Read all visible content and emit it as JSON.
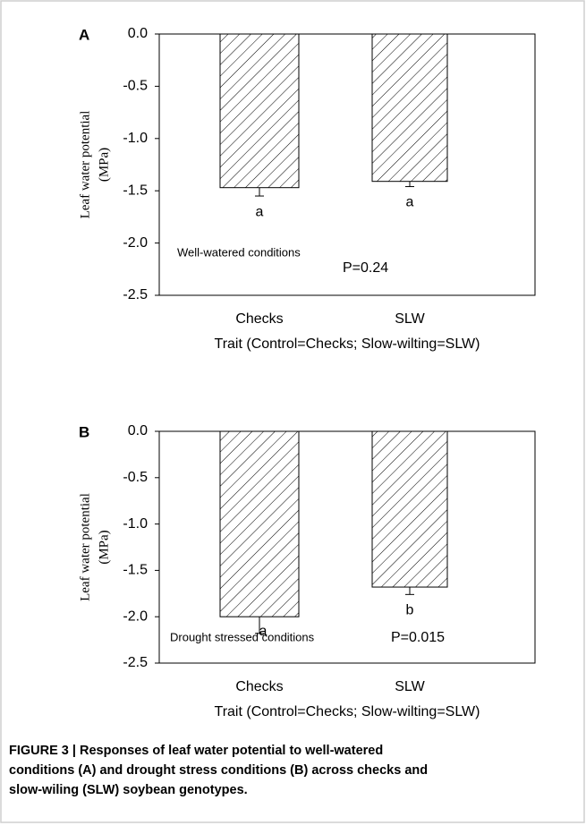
{
  "chart_data": [
    {
      "type": "bar",
      "panel": "A",
      "ylabel": [
        "Leaf water potential",
        "(MPa)"
      ],
      "xlabel": "Trait (Control=Checks; Slow-wilting=SLW)",
      "categories": [
        "Checks",
        "SLW"
      ],
      "values": [
        -1.47,
        -1.41
      ],
      "errors": [
        0.08,
        0.05
      ],
      "bar_letters": [
        "a",
        "a"
      ],
      "condition": "Well-watered conditions",
      "p_value": "P=0.24",
      "ylim": [
        -2.5,
        0
      ],
      "color": "#000000",
      "yticks": [
        {
          "value": 0,
          "label": "0.0"
        },
        -0.5,
        {
          "value": -1,
          "label": "-1.0"
        },
        -1.5,
        {
          "value": -2,
          "label": "-2.0"
        },
        -2.5
      ]
    },
    {
      "type": "bar",
      "panel": "B",
      "ylabel": [
        "Leaf water potential",
        "(MPa)"
      ],
      "xlabel": "Trait (Control=Checks; Slow-wilting=SLW)",
      "categories": [
        "Checks",
        "SLW"
      ],
      "values": [
        -2.0,
        -1.68
      ],
      "errors": [
        0.18,
        0.08
      ],
      "bar_letters": [
        "a",
        "b"
      ],
      "condition": "Drought stressed conditions",
      "p_value": "P=0.015",
      "ylim": [
        -2.5,
        0
      ],
      "color": "#000000",
      "yticks": [
        {
          "value": 0,
          "label": "0.0"
        },
        -0.5,
        {
          "value": -1,
          "label": "-1.0"
        },
        -1.5,
        {
          "value": -2,
          "label": "-2.0"
        },
        -2.5
      ]
    }
  ],
  "caption": [
    "FIGURE 3 | Responses of leaf water potential to well-watered",
    "conditions (A) and drought stress conditions (B) across checks and",
    "slow-wiling (SLW) soybean genotypes."
  ]
}
